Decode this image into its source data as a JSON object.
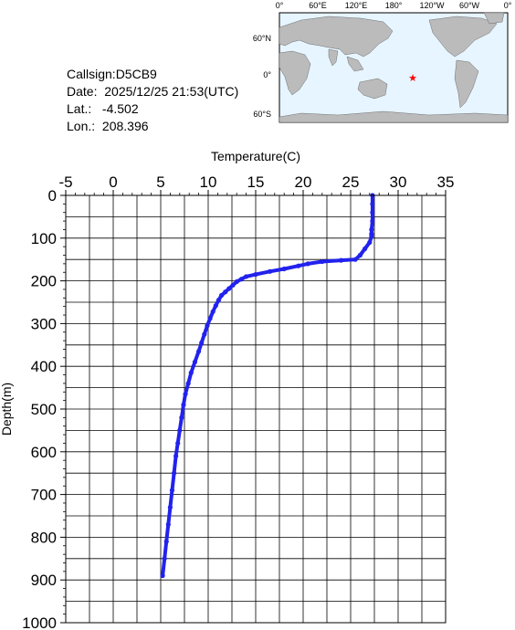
{
  "station": {
    "callsign_line": "Callsign:D5CB9",
    "date_line": "Date:  2025/12/25 21:53(UTC)",
    "lat_line": "Lat.:   -4.502",
    "lon_line": "Lon.:  208.396"
  },
  "map": {
    "lon_labels": [
      "0°",
      "60°E",
      "120°E",
      "180°",
      "120°W",
      "60°W",
      "0°"
    ],
    "lat_labels": [
      "60°N",
      "0°",
      "60°S"
    ],
    "marker": {
      "lat": -4.502,
      "lon": 208.396,
      "color": "#ff0000"
    },
    "ocean_color": "#e6f5ff",
    "land_color": "#bbbbbb"
  },
  "chart_data": {
    "type": "line",
    "title": "",
    "xlabel": "Temperature(C)",
    "ylabel": "Depth(m)",
    "xlim": [
      -5,
      35
    ],
    "ylim": [
      1000,
      0
    ],
    "x_ticks": [
      "-5",
      "0",
      "5",
      "10",
      "15",
      "20",
      "25",
      "30",
      "35"
    ],
    "y_ticks": [
      "0",
      "100",
      "200",
      "300",
      "400",
      "500",
      "600",
      "700",
      "800",
      "900",
      "1000"
    ],
    "grid": true,
    "series_color": "#2222ee",
    "series": [
      {
        "temperature": [
          27.3,
          27.3,
          27.3,
          27.3,
          27.2,
          27.2,
          27.2,
          27.0,
          26.5,
          26.0,
          25.5,
          24.0,
          22.0,
          20.5,
          19.5,
          18.0,
          16.5,
          15.0,
          14.0,
          13.5,
          13.0,
          12.6,
          12.2,
          11.8,
          11.4,
          11.1,
          10.8,
          10.5,
          10.2,
          9.9,
          9.6,
          9.3,
          9.0,
          8.6,
          8.2,
          7.9,
          7.6,
          7.4,
          7.2,
          7.0,
          6.8,
          6.6,
          6.4,
          6.2,
          6.0,
          5.8,
          5.6,
          5.4,
          5.2
        ],
        "depth": [
          0,
          20,
          40,
          60,
          80,
          90,
          95,
          110,
          125,
          140,
          150,
          152,
          155,
          160,
          165,
          172,
          178,
          185,
          190,
          196,
          202,
          210,
          218,
          226,
          234,
          245,
          258,
          272,
          288,
          305,
          325,
          345,
          365,
          390,
          415,
          440,
          465,
          490,
          520,
          550,
          580,
          610,
          650,
          690,
          730,
          770,
          810,
          850,
          890
        ]
      }
    ]
  }
}
